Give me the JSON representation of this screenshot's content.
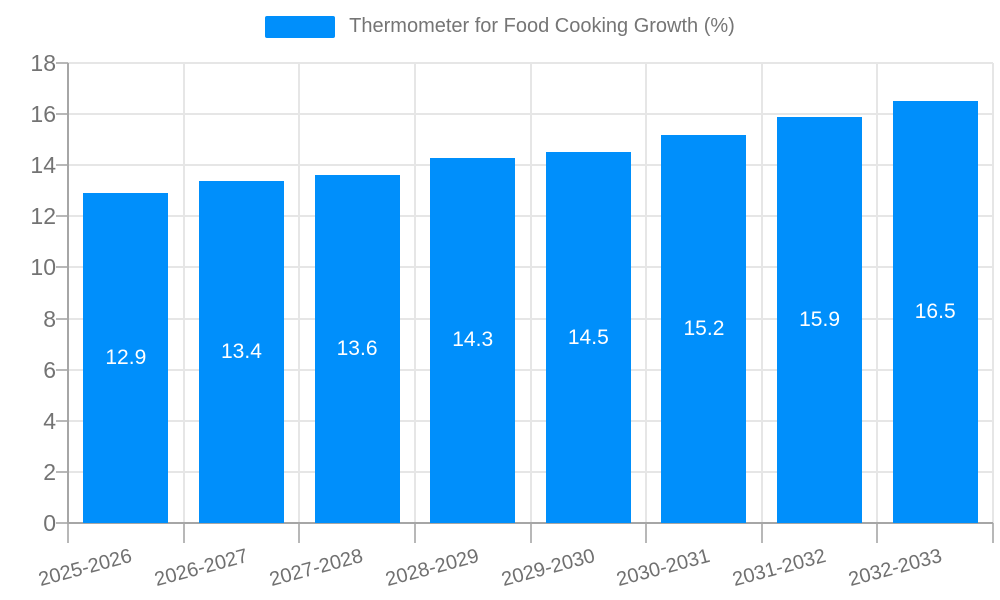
{
  "legend": {
    "label": "Thermometer for Food Cooking Growth (%)"
  },
  "chart_data": {
    "type": "bar",
    "title": "Thermometer for Food Cooking Growth (%)",
    "categories": [
      "2025-2026",
      "2026-2027",
      "2027-2028",
      "2028-2029",
      "2029-2030",
      "2030-2031",
      "2031-2032",
      "2032-2033"
    ],
    "values": [
      12.9,
      13.4,
      13.6,
      14.3,
      14.5,
      15.2,
      15.9,
      16.5
    ],
    "value_labels": [
      "12.9",
      "13.4",
      "13.6",
      "14.3",
      "14.5",
      "15.2",
      "15.9",
      "16.5"
    ],
    "xlabel": "",
    "ylabel": "",
    "ylim": [
      0,
      18
    ],
    "ytick_step": 2,
    "ytick_labels": [
      "0",
      "2",
      "4",
      "6",
      "8",
      "10",
      "12",
      "14",
      "16",
      "18"
    ],
    "grid": true,
    "legend_position": "top",
    "bar_color": "#008FFB",
    "value_label_color": "#ffffff",
    "grid_color": "#e6e6e6",
    "axis_color": "#a6a6a6",
    "tick_color": "#b8b8b8",
    "text_color": "#737373"
  }
}
